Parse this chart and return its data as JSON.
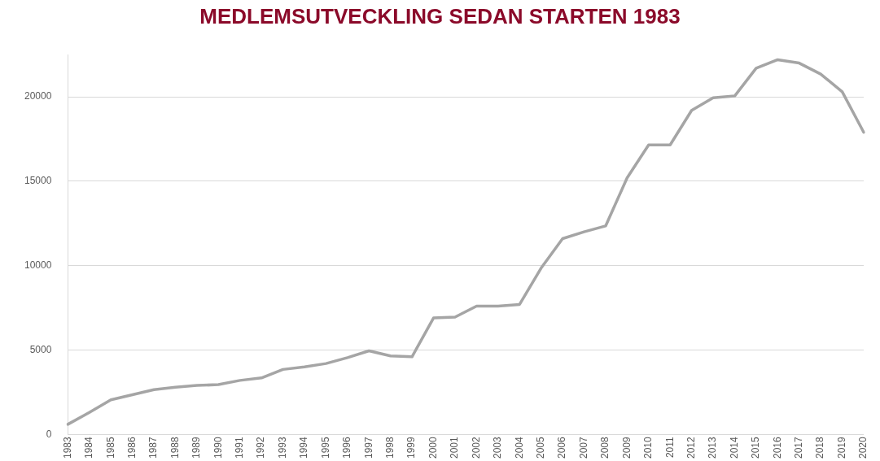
{
  "chart_data": {
    "type": "line",
    "title": "MEDLEMSUTVECKLING SEDAN STARTEN 1983",
    "categories": [
      "1983",
      "1984",
      "1985",
      "1986",
      "1987",
      "1988",
      "1989",
      "1990",
      "1991",
      "1992",
      "1993",
      "1994",
      "1995",
      "1996",
      "1997",
      "1998",
      "1999",
      "2000",
      "2001",
      "2002",
      "2003",
      "2004",
      "2005",
      "2006",
      "2007",
      "2008",
      "2009",
      "2010",
      "2011",
      "2012",
      "2013",
      "2014",
      "2015",
      "2016",
      "2017",
      "2018",
      "2019",
      "2020"
    ],
    "series": [
      {
        "color": "#a5a5a5",
        "values": [
          600,
          1300,
          2050,
          2350,
          2650,
          2800,
          2900,
          2950,
          3200,
          3350,
          3850,
          4000,
          4200,
          4550,
          4950,
          4650,
          4600,
          6900,
          6950,
          7600,
          7600,
          7700,
          9850,
          11600,
          12000,
          12350,
          15200,
          17150,
          17150,
          19200,
          19950,
          20050,
          21700,
          22200,
          22000,
          21350,
          20300,
          17900
        ]
      }
    ],
    "ylim": [
      0,
      22500
    ],
    "yticks": [
      0,
      5000,
      10000,
      15000,
      20000
    ],
    "grid": "y",
    "legend": false,
    "marker": "none",
    "line_style": "solid"
  }
}
